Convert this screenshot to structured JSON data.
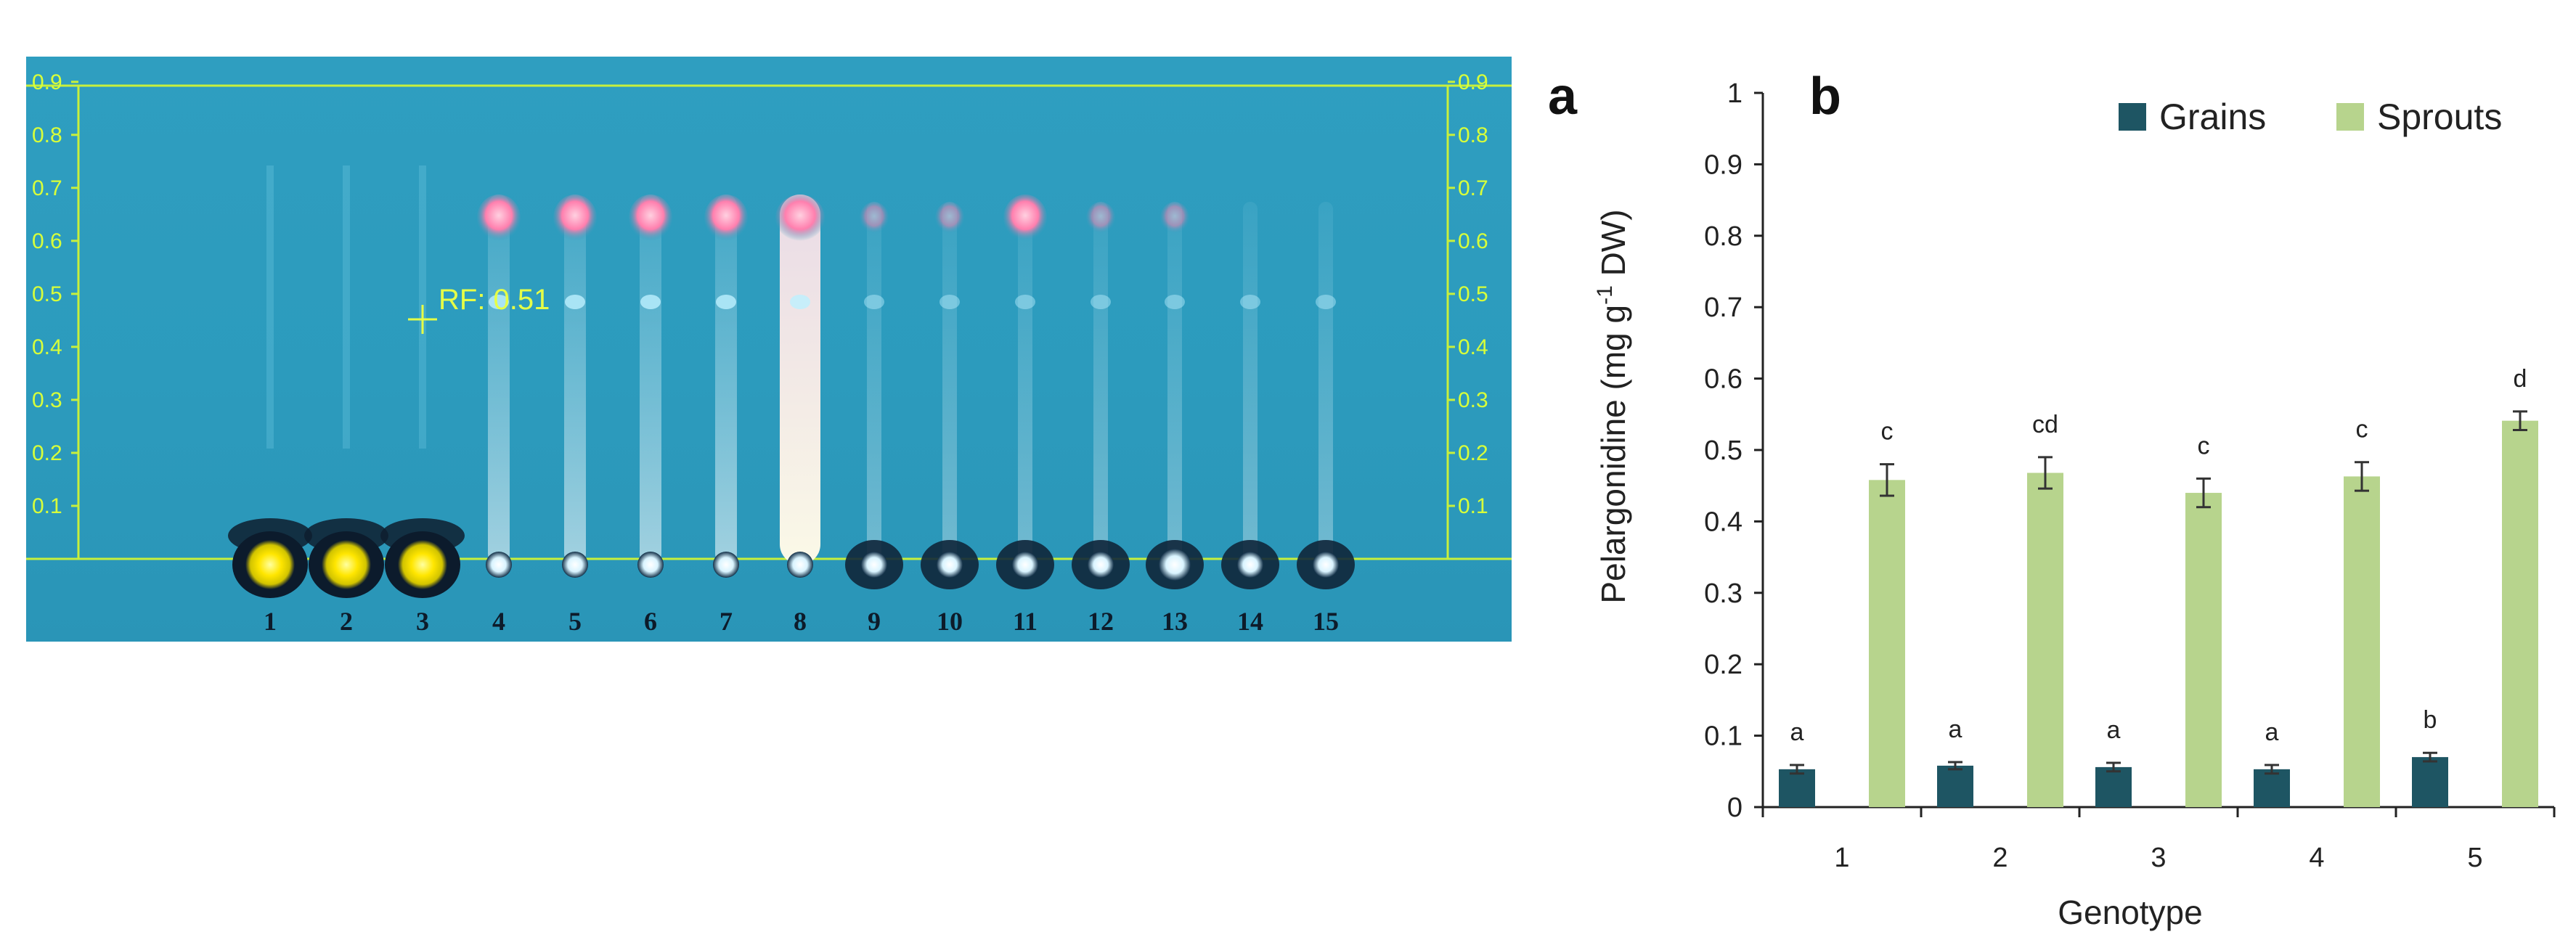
{
  "tlc_plate": {
    "rf_scale": [
      "0.9",
      "0.8",
      "0.7",
      "0.6",
      "0.5",
      "0.4",
      "0.3",
      "0.2",
      "0.1"
    ],
    "rf_marker": "RF: 0.51",
    "lanes": [
      "1",
      "2",
      "3",
      "4",
      "5",
      "6",
      "7",
      "8",
      "9",
      "10",
      "11",
      "12",
      "13",
      "14",
      "15"
    ]
  },
  "panel_labels": {
    "a": "a",
    "b": "b"
  },
  "chart_data": {
    "type": "bar",
    "categories": [
      "1",
      "2",
      "3",
      "4",
      "5"
    ],
    "xlabel": "Genotype",
    "ylabel": "Pelargonidine (mg g-1 DW)",
    "ylabel_parts": {
      "before": "Pelargonidine (mg g",
      "sup": "-1",
      "after": " DW)"
    },
    "ylim": [
      0,
      1
    ],
    "yticks": [
      "0",
      "0.1",
      "0.2",
      "0.3",
      "0.4",
      "0.5",
      "0.6",
      "0.7",
      "0.8",
      "0.9",
      "1"
    ],
    "legend_position": "top-right",
    "series": [
      {
        "name": "Grains",
        "color": "#1e5563",
        "values": [
          0.053,
          0.058,
          0.056,
          0.053,
          0.07
        ],
        "errors": [
          0.006,
          0.005,
          0.006,
          0.006,
          0.006
        ],
        "letters": [
          "a",
          "a",
          "a",
          "a",
          "b"
        ]
      },
      {
        "name": "Sprouts",
        "color": "#b7d48d",
        "values": [
          0.458,
          0.468,
          0.44,
          0.463,
          0.541
        ],
        "errors": [
          0.022,
          0.022,
          0.02,
          0.02,
          0.013
        ],
        "letters": [
          "c",
          "cd",
          "c",
          "c",
          "d"
        ]
      }
    ]
  }
}
